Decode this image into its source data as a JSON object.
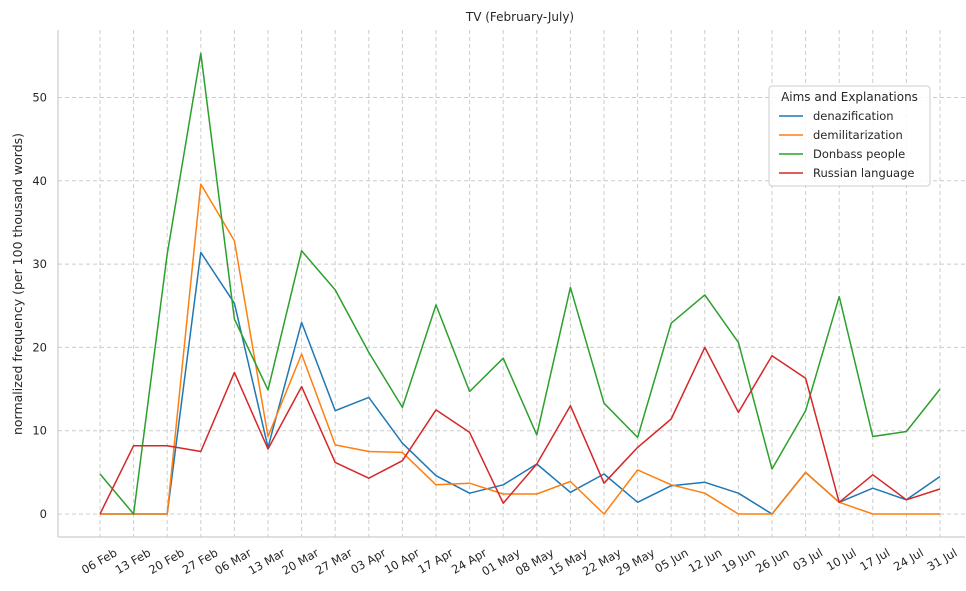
{
  "chart_data": {
    "type": "line",
    "title": "TV (February-July)",
    "xlabel": "",
    "ylabel": "normalized frequency (per 100 thousand words)",
    "categories": [
      "06 Feb",
      "13 Feb",
      "20 Feb",
      "27 Feb",
      "06 Mar",
      "13 Mar",
      "20 Mar",
      "27 Mar",
      "03 Apr",
      "10 Apr",
      "17 Apr",
      "24 Apr",
      "01 May",
      "08 May",
      "15 May",
      "22 May",
      "29 May",
      "05 Jun",
      "12 Jun",
      "19 Jun",
      "26 Jun",
      "03 Jul",
      "10 Jul",
      "17 Jul",
      "24 Jul",
      "31 Jul"
    ],
    "yticks": [
      0,
      10,
      20,
      30,
      40,
      50
    ],
    "ylim": [
      -2.8,
      58.1
    ],
    "grid": true,
    "legend": {
      "title": "Aims and Explanations",
      "position": "upper right"
    },
    "series": [
      {
        "name": "denazification",
        "color": "#1f77b4",
        "values": [
          0,
          0,
          0,
          31.4,
          25.3,
          8.0,
          23.0,
          12.4,
          14.0,
          8.5,
          4.6,
          2.5,
          3.5,
          6.0,
          2.6,
          4.8,
          1.4,
          3.4,
          3.8,
          2.5,
          0,
          5.0,
          1.4,
          3.1,
          1.7,
          4.5
        ]
      },
      {
        "name": "demilitarization",
        "color": "#ff7f0e",
        "values": [
          0,
          0,
          0,
          39.6,
          32.8,
          9.3,
          19.2,
          8.3,
          7.5,
          7.4,
          3.5,
          3.7,
          2.4,
          2.4,
          3.9,
          0,
          5.3,
          3.5,
          2.5,
          0,
          0,
          5.0,
          1.4,
          0,
          0,
          0
        ]
      },
      {
        "name": "Donbass people",
        "color": "#2ca02c",
        "values": [
          4.8,
          0,
          31.2,
          55.3,
          23.4,
          14.9,
          31.6,
          26.9,
          19.4,
          12.8,
          25.1,
          14.7,
          18.7,
          9.5,
          27.2,
          13.3,
          9.2,
          22.9,
          26.3,
          20.6,
          5.4,
          12.4,
          26.1,
          9.3,
          9.9,
          15.0
        ]
      },
      {
        "name": "Russian language",
        "color": "#d62728",
        "values": [
          0,
          8.2,
          8.2,
          7.5,
          17.0,
          7.8,
          15.3,
          6.2,
          4.3,
          6.4,
          12.5,
          9.8,
          1.3,
          6.0,
          13.0,
          3.7,
          8.0,
          11.4,
          20.0,
          12.2,
          19.0,
          16.3,
          1.4,
          4.7,
          1.7,
          3.0
        ]
      }
    ]
  }
}
